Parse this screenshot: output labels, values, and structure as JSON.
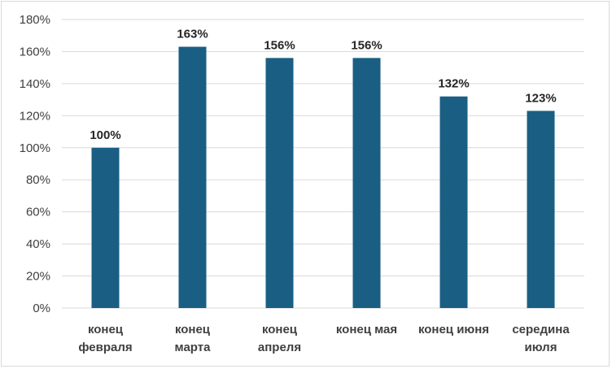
{
  "chart_data": {
    "type": "bar",
    "categories": [
      [
        "конец",
        "февраля"
      ],
      [
        "конец",
        "марта"
      ],
      [
        "конец",
        "апреля"
      ],
      [
        "конец мая"
      ],
      [
        "конец июня"
      ],
      [
        "середина",
        "июля"
      ]
    ],
    "values": [
      100,
      163,
      156,
      156,
      132,
      123
    ],
    "data_labels": [
      "100%",
      "163%",
      "156%",
      "156%",
      "132%",
      "123%"
    ],
    "y_ticks": [
      "0%",
      "20%",
      "40%",
      "60%",
      "80%",
      "100%",
      "120%",
      "140%",
      "160%",
      "180%"
    ],
    "ylim": [
      0,
      180
    ],
    "grid": true,
    "legend": false,
    "bar_color": "#1a5e83",
    "grid_color": "#d9d9d9"
  }
}
